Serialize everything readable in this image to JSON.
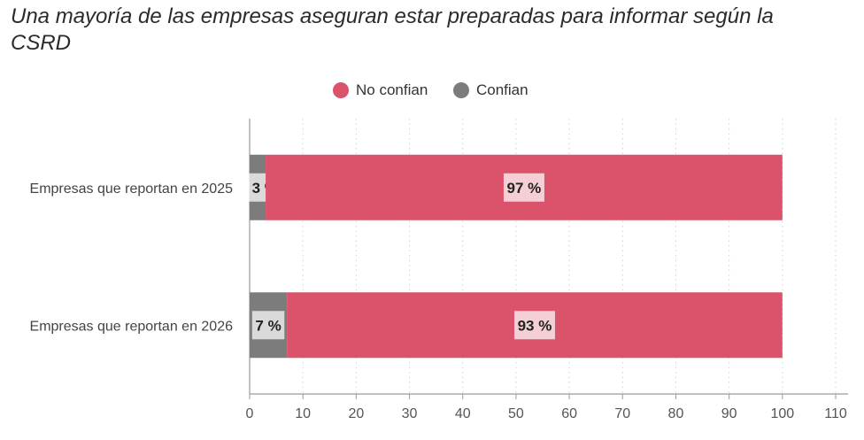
{
  "title": "Una mayoría de las empresas aseguran estar preparadas para informar según la CSRD",
  "legend": [
    {
      "label": "No confian",
      "color": "#db526b"
    },
    {
      "label": "Confian",
      "color": "#7c7c7c"
    }
  ],
  "chart_data": {
    "type": "bar",
    "orientation": "horizontal",
    "stacked": true,
    "title": "Una mayoría de las empresas aseguran estar preparadas para informar según la CSRD",
    "categories": [
      "Empresas que reportan en 2025",
      "Empresas que reportan en 2026"
    ],
    "series": [
      {
        "name": "Confian",
        "color": "#7c7c7c",
        "values": [
          3,
          7
        ],
        "labels": [
          "3 %",
          "7 %"
        ]
      },
      {
        "name": "No confian",
        "color": "#db526b",
        "values": [
          97,
          93
        ],
        "labels": [
          "97 %",
          "93 %"
        ]
      }
    ],
    "xlim": [
      0,
      110
    ],
    "xticks": [
      0,
      10,
      20,
      30,
      40,
      50,
      60,
      70,
      80,
      90,
      100,
      110
    ],
    "grid": "vertical-dotted",
    "legend_position": "top-center"
  }
}
